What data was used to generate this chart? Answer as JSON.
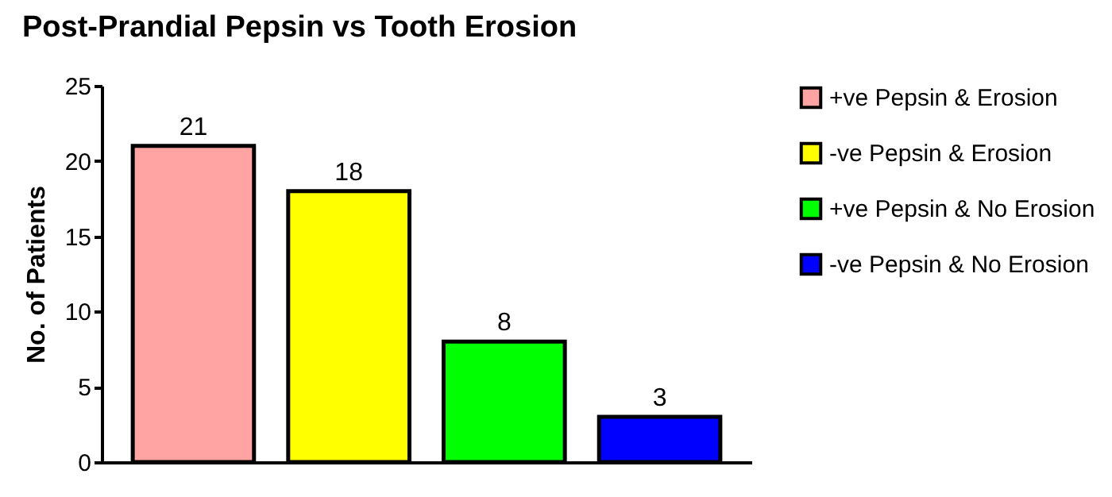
{
  "chart_data": {
    "type": "bar",
    "title": "Post-Prandial Pepsin vs Tooth Erosion",
    "ylabel": "No. of Patients",
    "categories": [
      null,
      null,
      null,
      null
    ],
    "series": [
      {
        "name": "+ve Pepsin & Erosion",
        "color": "#ffa3a3",
        "values": [
          21,
          null,
          null,
          null
        ]
      },
      {
        "name": "-ve Pepsin & Erosion",
        "color": "#ffff00",
        "values": [
          null,
          18,
          null,
          null
        ]
      },
      {
        "name": "+ve Pepsin & No Erosion",
        "color": "#00ff00",
        "values": [
          null,
          null,
          8,
          null
        ]
      },
      {
        "name": "-ve Pepsin & No Erosion",
        "color": "#0000ff",
        "values": [
          null,
          null,
          null,
          3
        ]
      }
    ],
    "ylim": [
      0,
      25
    ],
    "yticks": [
      0,
      5,
      10,
      15,
      20,
      25
    ],
    "grid": false,
    "legend": "right",
    "data_labels": true
  }
}
